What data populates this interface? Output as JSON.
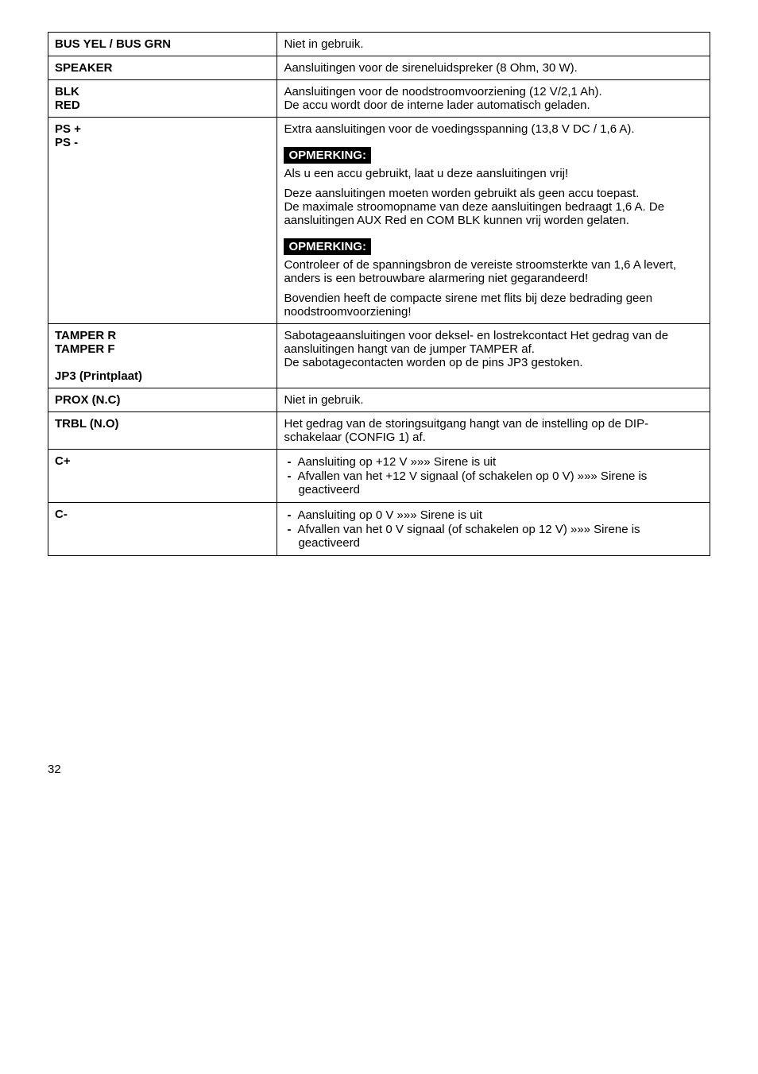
{
  "rows": {
    "busyel": {
      "label": "BUS YEL / BUS GRN",
      "text": "Niet in gebruik."
    },
    "speaker": {
      "label": "SPEAKER",
      "text": "Aansluitingen voor de sireneluidspreker (8 Ohm, 30 W)."
    },
    "blkred": {
      "label1": "BLK",
      "label2": "RED",
      "text": "Aansluitingen voor de noodstroomvoorziening (12 V/2,1 Ah).\nDe accu wordt door de interne lader automatisch geladen."
    },
    "ps": {
      "label1": "PS +",
      "label2": "PS -",
      "intro": "Extra aansluitingen voor de voedingsspanning (13,8 V DC / 1,6 A).",
      "opm_label": "OPMERKING:",
      "opm1_a": "Als u een accu gebruikt, laat u deze aansluitingen vrij!",
      "opm1_b": "Deze aansluitingen moeten worden gebruikt als geen accu toepast.\nDe maximale stroomopname van deze aansluitingen bedraagt 1,6 A. De aansluitingen AUX Red en COM BLK kunnen vrij worden gelaten.",
      "opm2_a": "Controleer of de spanningsbron de vereiste stroomsterkte van 1,6 A levert, anders is een betrouwbare alarmering niet gegarandeerd!",
      "opm2_b": "Bovendien heeft de compacte sirene met flits bij deze bedrading geen noodstroomvoorziening!"
    },
    "tamper": {
      "label1": "TAMPER R",
      "label2": "TAMPER F",
      "label3": "JP3 (Printplaat)",
      "text": "Sabotageaansluitingen voor deksel- en lostrekcontact Het gedrag van de aansluitingen hangt van de jumper TAMPER af.\nDe sabotagecontacten worden op de pins JP3 gestoken."
    },
    "prox": {
      "label": "PROX (N.C)",
      "text": "Niet in gebruik."
    },
    "trbl": {
      "label": "TRBL (N.O)",
      "text": "Het gedrag van de storingsuitgang hangt van de instelling op de DIP-schakelaar (CONFIG 1) af."
    },
    "cplus": {
      "label": "C+",
      "b1": "Aansluiting op +12 V »»» Sirene is uit",
      "b2": "Afvallen van het +12 V signaal (of schakelen op 0 V) »»» Sirene is geactiveerd"
    },
    "cminus": {
      "label": "C-",
      "b1": "Aansluiting op 0 V »»» Sirene is uit",
      "b2": "Afvallen van het 0 V signaal (of schakelen op 12 V) »»» Sirene is geactiveerd"
    }
  },
  "pagenum": "32"
}
